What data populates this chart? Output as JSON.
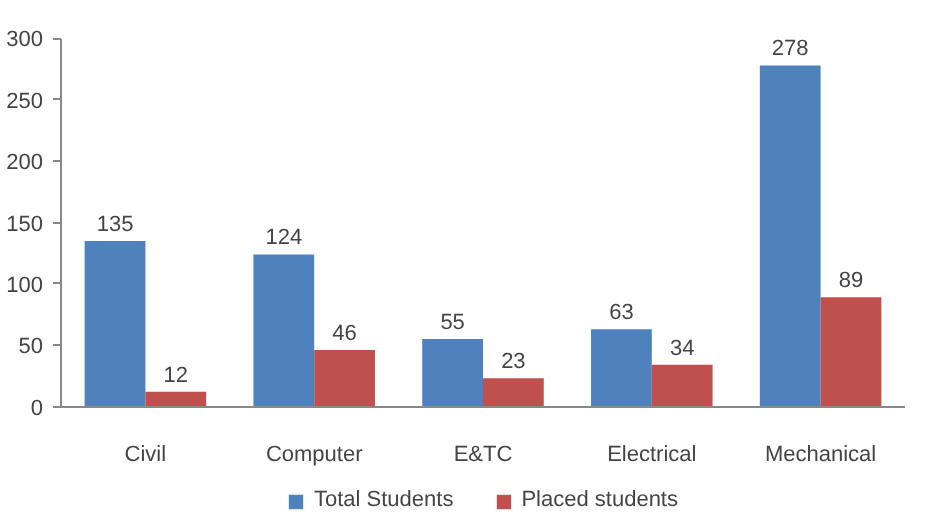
{
  "chart_data": {
    "type": "bar",
    "categories": [
      "Civil",
      "Computer",
      "E&TC",
      "Electrical",
      "Mechanical"
    ],
    "series": [
      {
        "name": "Total Students",
        "color": "#4f81bd",
        "values": [
          135,
          124,
          55,
          63,
          278
        ]
      },
      {
        "name": "Placed students",
        "color": "#c0504d",
        "values": [
          12,
          46,
          23,
          34,
          89
        ]
      }
    ],
    "ylim": [
      0,
      300
    ],
    "yticks": [
      0,
      50,
      100,
      150,
      200,
      250,
      300
    ],
    "data_labels": true,
    "grid": false,
    "legend": "bottom"
  }
}
